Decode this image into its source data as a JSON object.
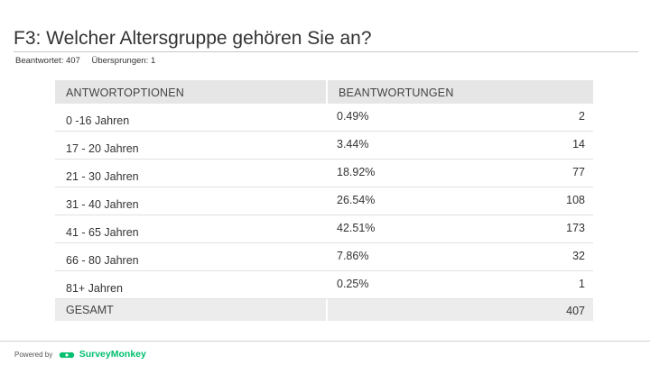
{
  "header": {
    "title": "F3: Welcher Altersgruppe gehören Sie an?",
    "answered": "Beantwortet: 407",
    "skipped": "Übersprungen: 1"
  },
  "chart_data": {
    "type": "table",
    "columns": [
      "ANTWORTOPTIONEN",
      "BEANTWORTUNGEN"
    ],
    "rows": [
      {
        "option": "0 -16 Jahren",
        "percent": "0.49%",
        "count": "2"
      },
      {
        "option": "17 - 20 Jahren",
        "percent": "3.44%",
        "count": "14"
      },
      {
        "option": "21 - 30 Jahren",
        "percent": "18.92%",
        "count": "77"
      },
      {
        "option": "31 - 40 Jahren",
        "percent": "26.54%",
        "count": "108"
      },
      {
        "option": "41 - 65 Jahren",
        "percent": "42.51%",
        "count": "173"
      },
      {
        "option": "66 - 80 Jahren",
        "percent": "7.86%",
        "count": "32"
      },
      {
        "option": "81+ Jahren",
        "percent": "0.25%",
        "count": "1"
      }
    ],
    "total": {
      "label": "GESAMT",
      "count": "407"
    }
  },
  "footer": {
    "powered_by": "Powered by",
    "brand": "SurveyMonkey",
    "brand_color": "#00bf6f",
    "logo_icon": "surveymonkey-logo-icon"
  }
}
